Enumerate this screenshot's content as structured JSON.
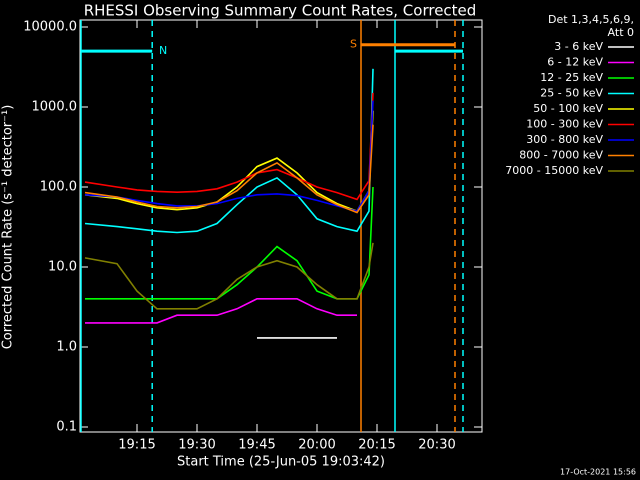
{
  "chart_data": {
    "type": "line",
    "title": "RHESSI Observing Summary Count Rates, Corrected",
    "x_label": "Start Time (25-Jun-05 19:03:42)",
    "y_label": "Corrected Count Rate (s⁻¹ detector⁻¹)",
    "legend_header": [
      "Det 1,3,4,5,6,9,",
      "Att 0"
    ],
    "footer": "17-Oct-2021 15:56",
    "log_y": true,
    "xlim": [
      1140.75,
      1241.25
    ],
    "xticks": [
      {
        "value": 1155,
        "label": "19:15"
      },
      {
        "value": 1170,
        "label": "19:30"
      },
      {
        "value": 1185,
        "label": "19:45"
      },
      {
        "value": 1200,
        "label": "20:00"
      },
      {
        "value": 1215,
        "label": "20:15"
      },
      {
        "value": 1230,
        "label": "20:30"
      }
    ],
    "ylim": [
      0.1,
      10000
    ],
    "yticks": [
      0.1,
      {
        "value": 1,
        "label": "1.0"
      },
      {
        "value": 10,
        "label": "10.0"
      },
      {
        "value": 100,
        "label": "100.0"
      },
      {
        "value": 1000,
        "label": "1000.0"
      },
      {
        "value": 10000,
        "label": "10000.0"
      }
    ],
    "x": [
      1142,
      1150,
      1155,
      1160,
      1165,
      1170,
      1175,
      1180,
      1185,
      1190,
      1195,
      1200,
      1205,
      1210,
      1213,
      1214
    ],
    "series": [
      {
        "name": "3 - 6 keV",
        "color": "#ffffff",
        "values": [
          null,
          null,
          null,
          null,
          null,
          null,
          null,
          null,
          1.3,
          1.3,
          1.3,
          1.3,
          1.3,
          null,
          null,
          null
        ]
      },
      {
        "name": "6 - 12 keV",
        "color": "#ff00ff",
        "values": [
          2,
          2,
          2,
          2,
          2.5,
          2.5,
          2.5,
          3,
          4,
          4,
          4,
          3,
          2.5,
          2.5,
          null,
          null
        ]
      },
      {
        "name": "12 - 25 keV",
        "color": "#00ff00",
        "values": [
          4,
          4,
          4,
          4,
          4,
          4,
          4,
          6,
          10,
          18,
          12,
          5,
          4,
          4,
          8,
          100
        ]
      },
      {
        "name": "25 - 50 keV",
        "color": "#00ffff",
        "values": [
          35,
          32,
          30,
          28,
          27,
          28,
          35,
          60,
          100,
          130,
          80,
          40,
          32,
          28,
          50,
          3000
        ]
      },
      {
        "name": "50 - 100 keV",
        "color": "#ffff00",
        "values": [
          80,
          72,
          62,
          55,
          52,
          55,
          65,
          100,
          180,
          230,
          150,
          85,
          62,
          50,
          90,
          900
        ]
      },
      {
        "name": "100 - 300 keV",
        "color": "#ff0000",
        "values": [
          115,
          100,
          92,
          88,
          86,
          88,
          95,
          115,
          150,
          165,
          130,
          100,
          85,
          70,
          120,
          1500
        ]
      },
      {
        "name": "300 - 800 keV",
        "color": "#0000ff",
        "values": [
          80,
          75,
          68,
          62,
          58,
          58,
          62,
          72,
          80,
          82,
          78,
          68,
          58,
          50,
          90,
          1200
        ]
      },
      {
        "name": "800 - 7000 keV",
        "color": "#ff8000",
        "values": [
          85,
          75,
          65,
          57,
          55,
          57,
          65,
          90,
          150,
          200,
          130,
          80,
          60,
          48,
          80,
          600
        ]
      },
      {
        "name": "7000 - 15000 keV",
        "color": "#808000",
        "values": [
          13,
          11,
          5,
          3,
          3,
          3,
          4,
          7,
          10,
          12,
          10,
          6,
          4,
          4,
          10,
          20
        ]
      }
    ],
    "markers": [
      {
        "x": 1141,
        "color": "#00ffff",
        "dashed": false
      },
      {
        "x": 1158.8,
        "color": "#00ffff",
        "dashed": true
      },
      {
        "x": 1211,
        "color": "#ff8000",
        "dashed": false
      },
      {
        "x": 1219.5,
        "color": "#00ffff",
        "dashed": false
      },
      {
        "x": 1234.5,
        "color": "#ff8000",
        "dashed": true
      },
      {
        "x": 1236.5,
        "color": "#00ffff",
        "dashed": true
      }
    ],
    "bands": [
      {
        "x0": 1141,
        "x1": 1158.8,
        "y": 5000,
        "color": "#00ffff"
      },
      {
        "x0": 1219.5,
        "x1": 1236.5,
        "y": 5000,
        "color": "#00ffff"
      },
      {
        "x0": 1211,
        "x1": 1234.5,
        "y": 6000,
        "color": "#ff8000",
        "label": "S"
      }
    ],
    "flags": [
      {
        "text": "N",
        "x": 1160.5,
        "y": 5000,
        "color": "#00ffff"
      }
    ]
  }
}
